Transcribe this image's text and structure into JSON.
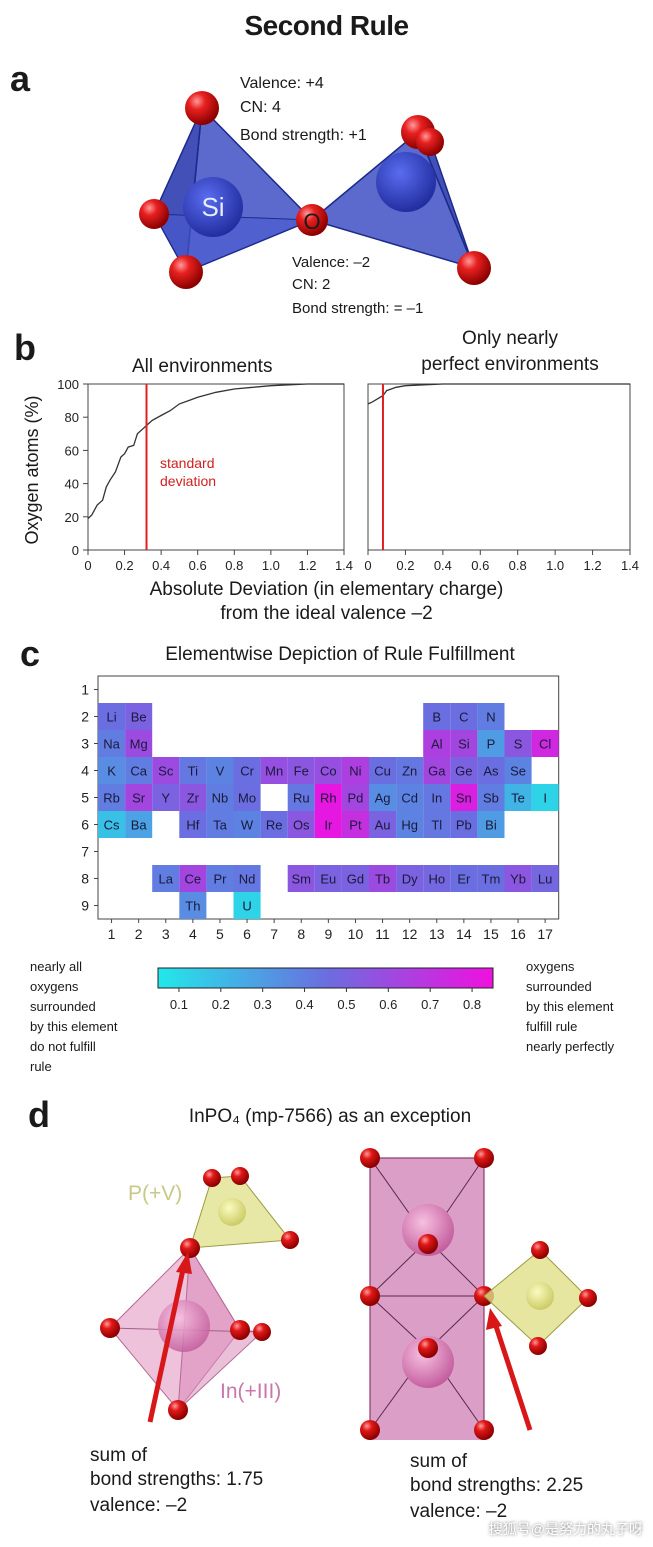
{
  "title": "Second Rule",
  "panel_a": {
    "letter": "a",
    "si_label": "Si",
    "o_label": "O",
    "si_info": [
      "Valence: +4",
      "CN: 4",
      "Bond strength: +1"
    ],
    "o_info": [
      "Valence: –2",
      "CN: 2",
      "Bond strength: = –1"
    ]
  },
  "panel_b": {
    "letter": "b",
    "left_title": "All environments",
    "right_title_line1": "Only nearly",
    "right_title_line2": "perfect environments",
    "annotation_line1": "standard",
    "annotation_line2": "deviation",
    "xlabel_line1": "Absolute Deviation (in elementary charge)",
    "xlabel_line2": "from the ideal valence –2"
  },
  "chart_data": [
    {
      "type": "line",
      "title": "All environments",
      "xlabel": "Absolute Deviation (in elementary charge) from the ideal valence –2",
      "ylabel": "Oxygen atoms (%)",
      "xlim": [
        0,
        1.4
      ],
      "ylim": [
        0,
        100
      ],
      "xticks": [
        "0",
        "0.2",
        "0.4",
        "0.6",
        "0.8",
        "1.0",
        "1.2",
        "1.4"
      ],
      "yticks": [
        "0",
        "20",
        "40",
        "60",
        "80",
        "100"
      ],
      "series": [
        {
          "name": "cumulative",
          "x": [
            0,
            0.02,
            0.05,
            0.08,
            0.1,
            0.12,
            0.15,
            0.18,
            0.2,
            0.22,
            0.25,
            0.27,
            0.3,
            0.32,
            0.35,
            0.4,
            0.45,
            0.5,
            0.55,
            0.6,
            0.7,
            0.8,
            0.9,
            1.0,
            1.1,
            1.2,
            1.3,
            1.4
          ],
          "y": [
            19,
            21,
            27,
            30,
            38,
            42,
            47,
            56,
            58,
            62,
            63,
            70,
            73,
            75,
            78,
            81,
            84,
            88,
            90,
            92,
            95,
            97,
            98,
            99,
            99.5,
            100,
            100,
            100
          ]
        }
      ],
      "vline": {
        "x": 0.32,
        "label": "standard deviation",
        "color": "#e02020"
      }
    },
    {
      "type": "line",
      "title": "Only nearly perfect environments",
      "xlim": [
        0,
        1.4
      ],
      "ylim": [
        0,
        100
      ],
      "xticks": [
        "0",
        "0.2",
        "0.4",
        "0.6",
        "0.8",
        "1.0",
        "1.2",
        "1.4"
      ],
      "series": [
        {
          "name": "cumulative",
          "x": [
            0,
            0.02,
            0.05,
            0.08,
            0.1,
            0.15,
            0.2,
            0.3,
            0.4,
            0.6,
            0.8,
            1.0,
            1.2,
            1.4
          ],
          "y": [
            88,
            89,
            91,
            93,
            96,
            98,
            99,
            99.5,
            100,
            100,
            100,
            100,
            100,
            100
          ]
        }
      ],
      "vline": {
        "x": 0.08,
        "color": "#e02020"
      }
    },
    {
      "type": "heatmap",
      "title": "Elementwise Depiction of Rule Fulfillment",
      "x_ticks": [
        "1",
        "2",
        "3",
        "4",
        "5",
        "6",
        "7",
        "8",
        "9",
        "10",
        "11",
        "12",
        "13",
        "14",
        "15",
        "16",
        "17"
      ],
      "y_ticks": [
        "1",
        "2",
        "3",
        "4",
        "5",
        "6",
        "7",
        "8",
        "9"
      ],
      "colorbar": {
        "ticks": [
          "0.1",
          "0.2",
          "0.3",
          "0.4",
          "0.5",
          "0.6",
          "0.7",
          "0.8"
        ],
        "min": 0.05,
        "max": 0.85
      },
      "cells": [
        {
          "el": "Li",
          "row": 2,
          "col": 1,
          "v": 0.45
        },
        {
          "el": "Be",
          "row": 2,
          "col": 2,
          "v": 0.5
        },
        {
          "el": "B",
          "row": 2,
          "col": 13,
          "v": 0.45
        },
        {
          "el": "C",
          "row": 2,
          "col": 14,
          "v": 0.45
        },
        {
          "el": "N",
          "row": 2,
          "col": 15,
          "v": 0.4
        },
        {
          "el": "Na",
          "row": 3,
          "col": 1,
          "v": 0.4
        },
        {
          "el": "Mg",
          "row": 3,
          "col": 2,
          "v": 0.6
        },
        {
          "el": "Al",
          "row": 3,
          "col": 13,
          "v": 0.65
        },
        {
          "el": "Si",
          "row": 3,
          "col": 14,
          "v": 0.62
        },
        {
          "el": "P",
          "row": 3,
          "col": 15,
          "v": 0.3
        },
        {
          "el": "S",
          "row": 3,
          "col": 16,
          "v": 0.55
        },
        {
          "el": "Cl",
          "row": 3,
          "col": 17,
          "v": 0.75
        },
        {
          "el": "K",
          "row": 4,
          "col": 1,
          "v": 0.35
        },
        {
          "el": "Ca",
          "row": 4,
          "col": 2,
          "v": 0.4
        },
        {
          "el": "Sc",
          "row": 4,
          "col": 3,
          "v": 0.6
        },
        {
          "el": "Ti",
          "row": 4,
          "col": 4,
          "v": 0.42
        },
        {
          "el": "V",
          "row": 4,
          "col": 5,
          "v": 0.38
        },
        {
          "el": "Cr",
          "row": 4,
          "col": 6,
          "v": 0.45
        },
        {
          "el": "Mn",
          "row": 4,
          "col": 7,
          "v": 0.58
        },
        {
          "el": "Fe",
          "row": 4,
          "col": 8,
          "v": 0.55
        },
        {
          "el": "Co",
          "row": 4,
          "col": 9,
          "v": 0.58
        },
        {
          "el": "Ni",
          "row": 4,
          "col": 10,
          "v": 0.65
        },
        {
          "el": "Cu",
          "row": 4,
          "col": 11,
          "v": 0.45
        },
        {
          "el": "Zn",
          "row": 4,
          "col": 12,
          "v": 0.42
        },
        {
          "el": "Ga",
          "row": 4,
          "col": 13,
          "v": 0.62
        },
        {
          "el": "Ge",
          "row": 4,
          "col": 14,
          "v": 0.5
        },
        {
          "el": "As",
          "row": 4,
          "col": 15,
          "v": 0.45
        },
        {
          "el": "Se",
          "row": 4,
          "col": 16,
          "v": 0.38
        },
        {
          "el": "Rb",
          "row": 5,
          "col": 1,
          "v": 0.4
        },
        {
          "el": "Sr",
          "row": 5,
          "col": 2,
          "v": 0.62
        },
        {
          "el": "Y",
          "row": 5,
          "col": 3,
          "v": 0.5
        },
        {
          "el": "Zr",
          "row": 5,
          "col": 4,
          "v": 0.55
        },
        {
          "el": "Nb",
          "row": 5,
          "col": 5,
          "v": 0.4
        },
        {
          "el": "Mo",
          "row": 5,
          "col": 6,
          "v": 0.45
        },
        {
          "el": "Ru",
          "row": 5,
          "col": 8,
          "v": 0.42
        },
        {
          "el": "Rh",
          "row": 5,
          "col": 9,
          "v": 0.82
        },
        {
          "el": "Pd",
          "row": 5,
          "col": 10,
          "v": 0.62
        },
        {
          "el": "Ag",
          "row": 5,
          "col": 11,
          "v": 0.35
        },
        {
          "el": "Cd",
          "row": 5,
          "col": 12,
          "v": 0.38
        },
        {
          "el": "In",
          "row": 5,
          "col": 13,
          "v": 0.42
        },
        {
          "el": "Sn",
          "row": 5,
          "col": 14,
          "v": 0.78
        },
        {
          "el": "Sb",
          "row": 5,
          "col": 15,
          "v": 0.4
        },
        {
          "el": "Te",
          "row": 5,
          "col": 16,
          "v": 0.22
        },
        {
          "el": "I",
          "row": 5,
          "col": 17,
          "v": 0.12
        },
        {
          "el": "Cs",
          "row": 6,
          "col": 1,
          "v": 0.18
        },
        {
          "el": "Ba",
          "row": 6,
          "col": 2,
          "v": 0.28
        },
        {
          "el": "Hf",
          "row": 6,
          "col": 4,
          "v": 0.45
        },
        {
          "el": "Ta",
          "row": 6,
          "col": 5,
          "v": 0.4
        },
        {
          "el": "W",
          "row": 6,
          "col": 6,
          "v": 0.38
        },
        {
          "el": "Re",
          "row": 6,
          "col": 7,
          "v": 0.45
        },
        {
          "el": "Os",
          "row": 6,
          "col": 8,
          "v": 0.55
        },
        {
          "el": "Ir",
          "row": 6,
          "col": 9,
          "v": 0.82
        },
        {
          "el": "Pt",
          "row": 6,
          "col": 10,
          "v": 0.72
        },
        {
          "el": "Au",
          "row": 6,
          "col": 11,
          "v": 0.5
        },
        {
          "el": "Hg",
          "row": 6,
          "col": 12,
          "v": 0.38
        },
        {
          "el": "Tl",
          "row": 6,
          "col": 13,
          "v": 0.42
        },
        {
          "el": "Pb",
          "row": 6,
          "col": 14,
          "v": 0.45
        },
        {
          "el": "Bi",
          "row": 6,
          "col": 15,
          "v": 0.3
        },
        {
          "el": "La",
          "row": 8,
          "col": 3,
          "v": 0.4
        },
        {
          "el": "Ce",
          "row": 8,
          "col": 4,
          "v": 0.62
        },
        {
          "el": "Pr",
          "row": 8,
          "col": 5,
          "v": 0.4
        },
        {
          "el": "Nd",
          "row": 8,
          "col": 6,
          "v": 0.42
        },
        {
          "el": "Sm",
          "row": 8,
          "col": 8,
          "v": 0.55
        },
        {
          "el": "Eu",
          "row": 8,
          "col": 9,
          "v": 0.5
        },
        {
          "el": "Gd",
          "row": 8,
          "col": 10,
          "v": 0.5
        },
        {
          "el": "Tb",
          "row": 8,
          "col": 11,
          "v": 0.6
        },
        {
          "el": "Dy",
          "row": 8,
          "col": 12,
          "v": 0.5
        },
        {
          "el": "Ho",
          "row": 8,
          "col": 13,
          "v": 0.48
        },
        {
          "el": "Er",
          "row": 8,
          "col": 14,
          "v": 0.45
        },
        {
          "el": "Tm",
          "row": 8,
          "col": 15,
          "v": 0.45
        },
        {
          "el": "Yb",
          "row": 8,
          "col": 16,
          "v": 0.55
        },
        {
          "el": "Lu",
          "row": 8,
          "col": 17,
          "v": 0.48
        },
        {
          "el": "Th",
          "row": 9,
          "col": 4,
          "v": 0.35
        },
        {
          "el": "U",
          "row": 9,
          "col": 6,
          "v": 0.12
        }
      ]
    }
  ],
  "panel_c": {
    "letter": "c",
    "title": "Elementwise Depiction of Rule Fulfillment",
    "left_note": [
      "nearly all",
      "oxygens",
      "surrounded",
      "by this element",
      "do not fulfill",
      "rule"
    ],
    "right_note": [
      "oxygens",
      "surrounded",
      "by this element",
      "fulfill rule",
      "nearly perfectly"
    ]
  },
  "panel_d": {
    "letter": "d",
    "title": "InPO₄ (mp-7566) as an exception",
    "p_label": "P(+V)",
    "in_label": "In(+III)",
    "left_caption": [
      "sum of",
      "bond strengths: 1.75",
      "valence: –2"
    ],
    "right_caption": [
      "sum of",
      "bond strengths: 2.25",
      "valence: –2"
    ]
  },
  "colors": {
    "tetra_blue": "#3f4fc4",
    "oxygen_red": "#d81818",
    "deviation_red": "#e02020",
    "cmap_low": "#22e8ea",
    "cmap_mid": "#6a6ee0",
    "cmap_high": "#f010e0",
    "octa_pink": "#c86aa8",
    "phos_yellow": "#e0e088"
  },
  "watermark": "搜狐号@是努力的丸子呀"
}
